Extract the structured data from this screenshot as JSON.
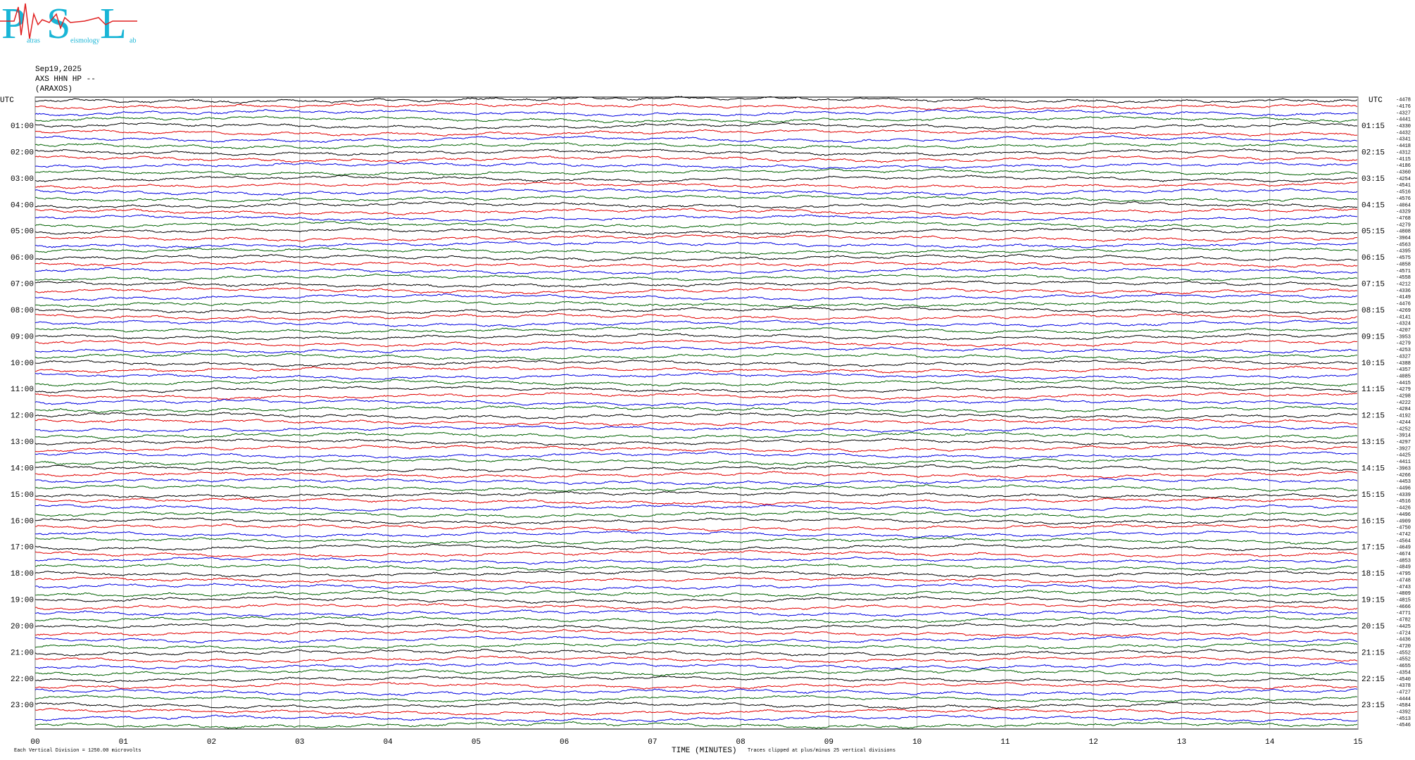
{
  "logo": {
    "letters": [
      "P",
      "S",
      "L"
    ],
    "words": [
      "atras",
      "eismology",
      "ab"
    ]
  },
  "header": {
    "date": "Sep19,2025",
    "station": "AXS HHN HP --",
    "location": "(ARAXOS)"
  },
  "left_axis": {
    "title": "UTC",
    "labels": [
      "01:00",
      "02:00",
      "03:00",
      "04:00",
      "05:00",
      "06:00",
      "07:00",
      "08:00",
      "09:00",
      "10:00",
      "11:00",
      "12:00",
      "13:00",
      "14:00",
      "15:00",
      "16:00",
      "17:00",
      "18:00",
      "19:00",
      "20:00",
      "21:00",
      "22:00",
      "23:00"
    ]
  },
  "right_axis": {
    "title": "UTC",
    "labels": [
      "01:15",
      "02:15",
      "03:15",
      "04:15",
      "05:15",
      "06:15",
      "07:15",
      "08:15",
      "09:15",
      "10:15",
      "11:15",
      "12:15",
      "13:15",
      "14:15",
      "15:15",
      "16:15",
      "17:15",
      "18:15",
      "19:15",
      "20:15",
      "21:15",
      "22:15",
      "23:15"
    ]
  },
  "trace_offsets": [
    -4478,
    -4176,
    -4327,
    -4441,
    -4330,
    -4432,
    -4341,
    -4418,
    -4312,
    -4115,
    -4186,
    -4360,
    -4254,
    -4541,
    -4516,
    -4576,
    -4064,
    -4329,
    -4768,
    -4279,
    -4808,
    -3964,
    -4563,
    -4395,
    -4575,
    -4858,
    -4571,
    -4558,
    -4212,
    -4336,
    -4149,
    -4476,
    -4269,
    -4141,
    -4324,
    -4207,
    -3953,
    -4279,
    -4253,
    -4327,
    -4388,
    -4357,
    -4085,
    -4415,
    -4279,
    -4298,
    -4222,
    -4284,
    -4192,
    -4244,
    -4252,
    -3914,
    -4297,
    -3927,
    -4425,
    -4411,
    -3963,
    -4266,
    -4453,
    -4496,
    -4339,
    -4516,
    -4426,
    -4496,
    -4909,
    -4750,
    -4742,
    -4564,
    -4649,
    -4674,
    -4853,
    -4849,
    -4795,
    -4748,
    -4743,
    -4809,
    -4815,
    -4666,
    -4771,
    -4782,
    -4425,
    -4724,
    -4436,
    -4720,
    -4552,
    -4552,
    -4655,
    -4354,
    -4540,
    -4378,
    -4727,
    -4444,
    -4584,
    -4392,
    -4513,
    -4546
  ],
  "x_axis": {
    "title": "TIME (MINUTES)",
    "labels": [
      "00",
      "01",
      "02",
      "03",
      "04",
      "05",
      "06",
      "07",
      "08",
      "09",
      "10",
      "11",
      "12",
      "13",
      "14",
      "15"
    ]
  },
  "footer": {
    "scale_note": "Each Vertical Division = 1250.00 microvolts",
    "clip_note": "Traces clipped at plus/minus 25 vertical divisions"
  }
}
